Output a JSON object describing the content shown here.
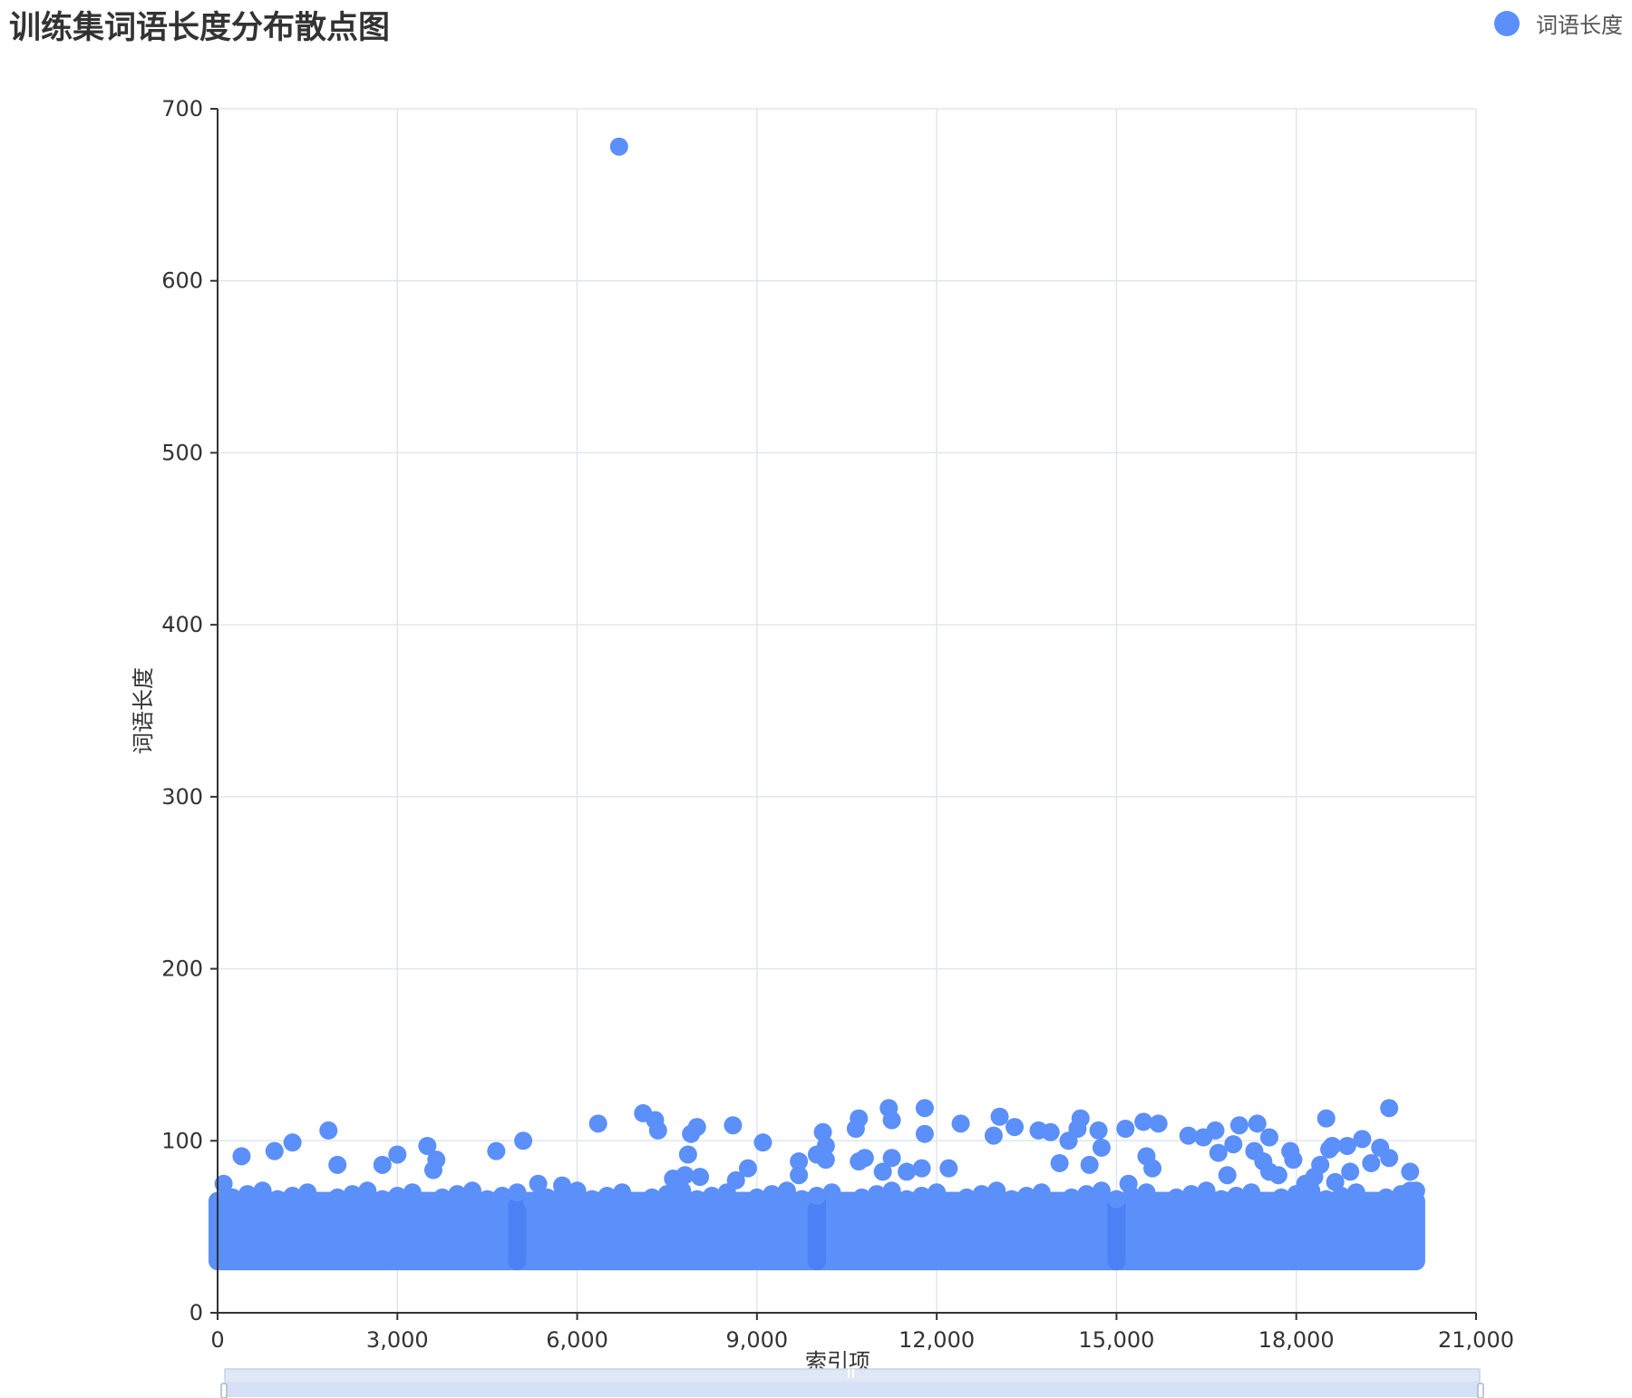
{
  "title": "训练集词语长度分布散点图",
  "legend": {
    "label": "词语长度",
    "color": "#5B8FF9"
  },
  "chart_data": {
    "type": "scatter",
    "title": "训练集词语长度分布散点图",
    "xlabel": "索引项",
    "ylabel": "词语长度",
    "xlim": [
      0,
      21000
    ],
    "ylim": [
      0,
      700
    ],
    "xticks": [
      "0",
      "3,000",
      "6,000",
      "9,000",
      "12,000",
      "15,000",
      "18,000",
      "21,000"
    ],
    "yticks": [
      "0",
      "100",
      "200",
      "300",
      "400",
      "500",
      "600",
      "700"
    ],
    "grid": true,
    "legend_position": "top-right",
    "series": [
      {
        "name": "词语长度",
        "color": "#5B8FF9",
        "band": {
          "x": [
            0,
            20000
          ],
          "y": [
            30,
            65
          ]
        },
        "points": [
          [
            6700,
            678
          ],
          [
            100,
            75
          ],
          [
            400,
            91
          ],
          [
            950,
            94
          ],
          [
            1250,
            99
          ],
          [
            1850,
            106
          ],
          [
            2000,
            86
          ],
          [
            2750,
            86
          ],
          [
            3000,
            92
          ],
          [
            3500,
            97
          ],
          [
            3600,
            83
          ],
          [
            3650,
            89
          ],
          [
            4650,
            94
          ],
          [
            5100,
            100
          ],
          [
            5350,
            75
          ],
          [
            5750,
            74
          ],
          [
            6350,
            110
          ],
          [
            7100,
            116
          ],
          [
            7300,
            112
          ],
          [
            7350,
            106
          ],
          [
            7600,
            78
          ],
          [
            7800,
            80
          ],
          [
            7850,
            92
          ],
          [
            7900,
            104
          ],
          [
            8000,
            108
          ],
          [
            8050,
            79
          ],
          [
            8600,
            109
          ],
          [
            8650,
            77
          ],
          [
            8850,
            84
          ],
          [
            9100,
            99
          ],
          [
            9700,
            88
          ],
          [
            9700,
            80
          ],
          [
            10000,
            92
          ],
          [
            10100,
            105
          ],
          [
            10150,
            97
          ],
          [
            10150,
            89
          ],
          [
            10650,
            107
          ],
          [
            10700,
            113
          ],
          [
            10700,
            88
          ],
          [
            10800,
            90
          ],
          [
            11100,
            82
          ],
          [
            11200,
            119
          ],
          [
            11250,
            112
          ],
          [
            11250,
            90
          ],
          [
            11500,
            82
          ],
          [
            11750,
            84
          ],
          [
            11800,
            119
          ],
          [
            11800,
            104
          ],
          [
            12200,
            84
          ],
          [
            12400,
            110
          ],
          [
            12950,
            103
          ],
          [
            13050,
            114
          ],
          [
            13300,
            108
          ],
          [
            13700,
            106
          ],
          [
            13900,
            105
          ],
          [
            14050,
            87
          ],
          [
            14200,
            100
          ],
          [
            14350,
            107
          ],
          [
            14400,
            113
          ],
          [
            14550,
            86
          ],
          [
            14700,
            106
          ],
          [
            14750,
            96
          ],
          [
            15150,
            107
          ],
          [
            15200,
            75
          ],
          [
            15450,
            111
          ],
          [
            15500,
            91
          ],
          [
            15600,
            84
          ],
          [
            15700,
            110
          ],
          [
            16200,
            103
          ],
          [
            16450,
            102
          ],
          [
            16650,
            106
          ],
          [
            16700,
            93
          ],
          [
            16850,
            80
          ],
          [
            16950,
            98
          ],
          [
            17050,
            109
          ],
          [
            17300,
            94
          ],
          [
            17350,
            110
          ],
          [
            17450,
            88
          ],
          [
            17550,
            102
          ],
          [
            17550,
            82
          ],
          [
            17700,
            80
          ],
          [
            17900,
            94
          ],
          [
            17950,
            89
          ],
          [
            18150,
            75
          ],
          [
            18300,
            79
          ],
          [
            18400,
            86
          ],
          [
            18500,
            113
          ],
          [
            18550,
            95
          ],
          [
            18600,
            97
          ],
          [
            18650,
            76
          ],
          [
            18850,
            97
          ],
          [
            18900,
            82
          ],
          [
            19100,
            101
          ],
          [
            19250,
            87
          ],
          [
            19400,
            96
          ],
          [
            19550,
            119
          ],
          [
            19550,
            90
          ],
          [
            19900,
            82
          ],
          [
            19900,
            71
          ]
        ]
      }
    ]
  }
}
